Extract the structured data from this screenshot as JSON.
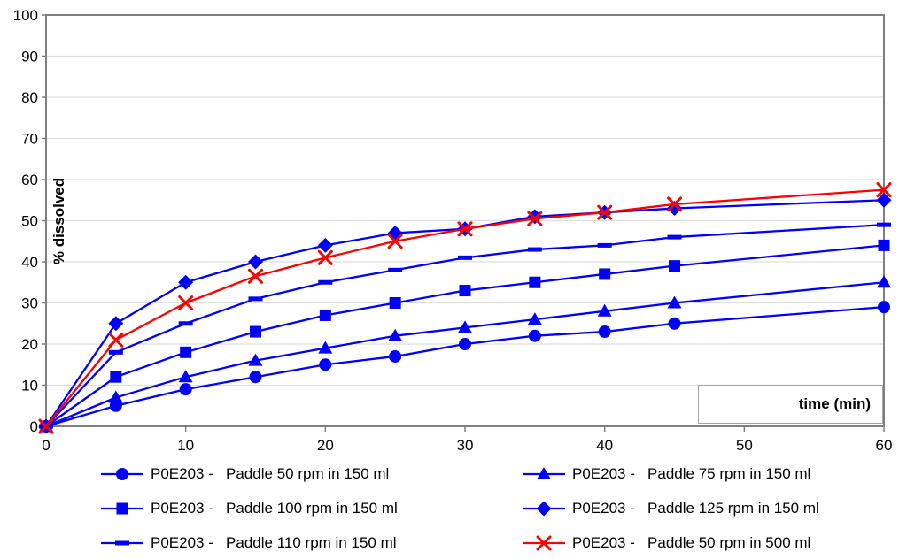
{
  "chart_data": {
    "type": "line",
    "title": "",
    "xlabel": "time (min)",
    "ylabel": "% dissolved",
    "xlim": [
      0,
      60
    ],
    "ylim": [
      0,
      100
    ],
    "x_ticks": [
      0,
      10,
      20,
      30,
      40,
      50,
      60
    ],
    "y_ticks": [
      0,
      10,
      20,
      30,
      40,
      50,
      60,
      70,
      80,
      90,
      100
    ],
    "grid": "horizontal",
    "legend_position": "bottom-two-columns",
    "x": [
      0,
      5,
      10,
      15,
      20,
      25,
      30,
      35,
      40,
      45,
      60
    ],
    "series": [
      {
        "name": "P0E203 -   Paddle 50 rpm in 150 ml",
        "marker": "circle",
        "color": "#0000FF",
        "values": [
          0,
          5,
          9,
          12,
          15,
          17,
          20,
          22,
          23,
          25,
          29
        ]
      },
      {
        "name": "P0E203 -   Paddle 75 rpm in 150 ml",
        "marker": "triangle",
        "color": "#0000FF",
        "values": [
          0,
          7,
          12,
          16,
          19,
          22,
          24,
          26,
          28,
          30,
          35
        ]
      },
      {
        "name": "P0E203 -   Paddle 100 rpm in 150 ml",
        "marker": "square",
        "color": "#0000FF",
        "values": [
          0,
          12,
          18,
          23,
          27,
          30,
          33,
          35,
          37,
          39,
          44
        ]
      },
      {
        "name": "P0E203 -   Paddle 125 rpm in 150 ml",
        "marker": "diamond",
        "color": "#0000FF",
        "values": [
          0,
          25,
          35,
          40,
          44,
          47,
          48,
          51,
          52,
          53,
          55
        ]
      },
      {
        "name": "P0E203 -   Paddle 110 rpm in 150 ml",
        "marker": "dash",
        "color": "#0000FF",
        "values": [
          0,
          18,
          25,
          31,
          35,
          38,
          41,
          43,
          44,
          46,
          49
        ]
      },
      {
        "name": "P0E203 -   Paddle 50 rpm in 500 ml",
        "marker": "x",
        "color": "#FF0000",
        "values": [
          0,
          21,
          30,
          36.5,
          41,
          45,
          48,
          50.5,
          52,
          54,
          57.5
        ]
      }
    ],
    "legend_columns": [
      [
        0,
        2,
        4
      ],
      [
        1,
        3,
        5
      ]
    ]
  },
  "colors": {
    "series_blue": "#0000FF",
    "series_red": "#FF0000",
    "gridline": "#DEDEDE",
    "axis_border": "#7F7F7F",
    "text": "#000000"
  }
}
